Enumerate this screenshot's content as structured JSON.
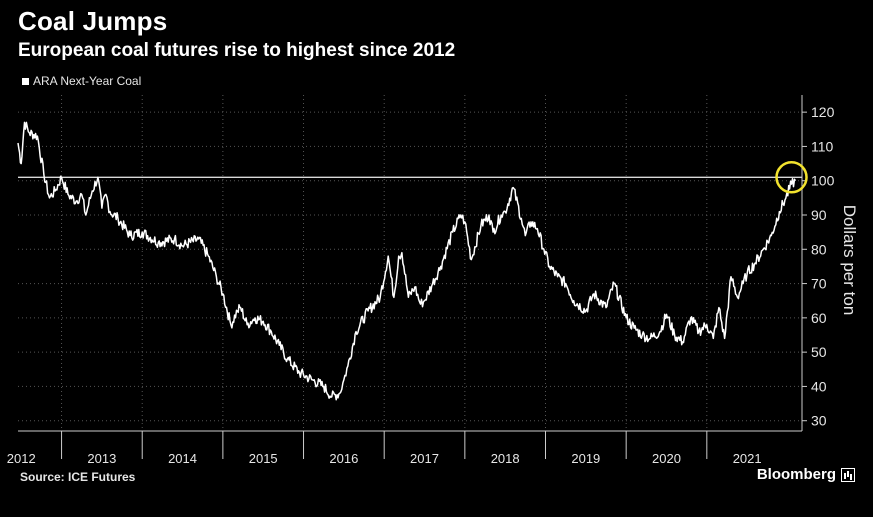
{
  "header": {
    "title": "Coal Jumps",
    "subtitle": "European coal futures rise to highest since 2012"
  },
  "footer": {
    "source": "Source: ICE Futures",
    "brand": "Bloomberg"
  },
  "colors": {
    "background": "#000000",
    "line": "#ffffff",
    "highlight_circle": "#f2e22e",
    "grid": "#555555"
  },
  "chart_data": {
    "type": "line",
    "title": "Coal Jumps",
    "subtitle": "European coal futures rise to highest since 2012",
    "ylabel": "Dollars per ton",
    "ylim": [
      27,
      125
    ],
    "yticks": [
      30,
      40,
      50,
      60,
      70,
      80,
      90,
      100,
      110,
      120
    ],
    "xlim": [
      2011.96,
      2021.68
    ],
    "xticks": [
      2012,
      2013,
      2014,
      2015,
      2016,
      2017,
      2018,
      2019,
      2020,
      2021
    ],
    "grid": true,
    "legend": "top-left",
    "reference_line": {
      "value": 101,
      "label": ""
    },
    "highlight_circle": {
      "x": 2021.55,
      "y": 101
    },
    "series": [
      {
        "name": "ARA Next-Year Coal",
        "x": [
          2011.96,
          2012.0,
          2012.04,
          2012.1,
          2012.2,
          2012.28,
          2012.35,
          2012.42,
          2012.5,
          2012.58,
          2012.68,
          2012.75,
          2012.8,
          2012.88,
          2012.95,
          2013.0,
          2013.05,
          2013.1,
          2013.2,
          2013.35,
          2013.5,
          2013.7,
          2013.9,
          2014.0,
          2014.2,
          2014.32,
          2014.42,
          2014.5,
          2014.6,
          2014.68,
          2014.72,
          2014.8,
          2014.9,
          2015.0,
          2015.1,
          2015.2,
          2015.3,
          2015.45,
          2015.6,
          2015.75,
          2015.85,
          2015.95,
          2016.0,
          2016.05,
          2016.15,
          2016.3,
          2016.45,
          2016.55,
          2016.62,
          2016.68,
          2016.72,
          2016.8,
          2016.88,
          2016.95,
          2017.0,
          2017.1,
          2017.2,
          2017.35,
          2017.45,
          2017.5,
          2017.58,
          2017.7,
          2017.8,
          2017.85,
          2017.95,
          2018.0,
          2018.1,
          2018.2,
          2018.25,
          2018.32,
          2018.4,
          2018.48,
          2018.55,
          2018.65,
          2018.75,
          2018.85,
          2019.0,
          2019.1,
          2019.25,
          2019.35,
          2019.5,
          2019.6,
          2019.7,
          2019.8,
          2019.92,
          2020.0,
          2020.1,
          2020.2,
          2020.3,
          2020.4,
          2020.5,
          2020.58,
          2020.65,
          2020.72,
          2020.8,
          2020.88,
          2020.95,
          2021.0,
          2021.1,
          2021.2,
          2021.3,
          2021.4,
          2021.48,
          2021.55,
          2021.6
        ],
        "y": [
          111,
          105,
          117,
          114,
          113,
          102,
          95,
          97,
          101,
          96,
          94,
          96,
          90,
          97,
          101,
          92,
          96,
          91,
          89,
          84,
          85,
          82,
          83,
          81,
          83,
          78,
          72,
          67,
          58,
          62,
          63,
          58,
          60,
          59,
          56,
          52,
          48,
          44,
          42,
          40,
          37,
          38,
          42,
          46,
          56,
          62,
          66,
          78,
          66,
          78,
          79,
          66,
          69,
          64,
          65,
          70,
          75,
          85,
          90,
          88,
          77,
          87,
          90,
          85,
          90,
          91,
          98,
          89,
          84,
          88,
          86,
          80,
          75,
          72,
          70,
          65,
          62,
          67,
          63,
          70,
          60,
          57,
          55,
          54,
          56,
          61,
          55,
          53,
          60,
          56,
          58,
          54,
          63,
          54,
          72,
          66,
          70,
          73,
          76,
          80,
          84,
          91,
          95,
          99,
          100
        ]
      }
    ]
  }
}
